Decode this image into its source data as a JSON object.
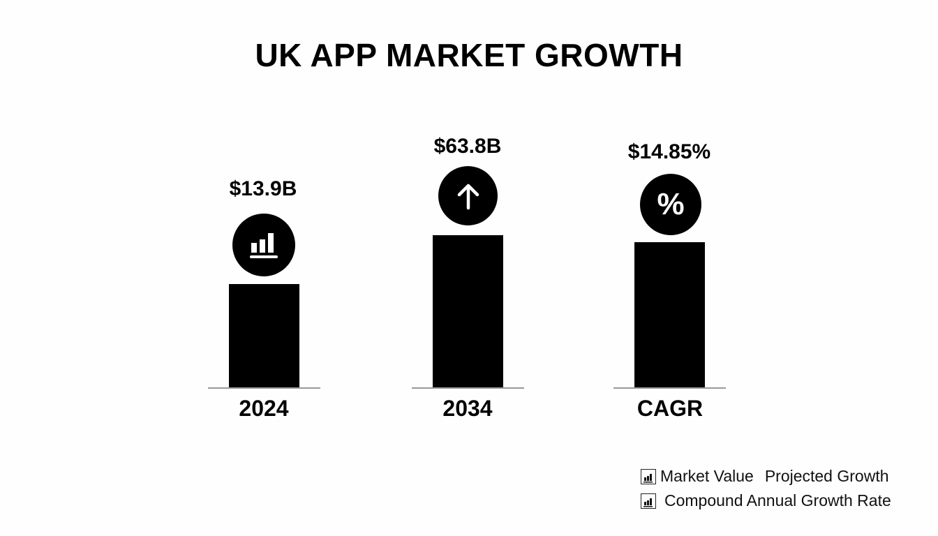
{
  "chart_data": {
    "type": "bar",
    "title": "UK APP MARKET GROWTH",
    "categories": [
      "2024",
      "2034",
      "CAGR"
    ],
    "value_labels": [
      "$13.9B",
      "$63.8B",
      "$14.85%"
    ],
    "values": [
      13.9,
      63.8,
      14.85
    ],
    "icons": [
      "bar-chart-icon",
      "arrow-up-icon",
      "percent-icon"
    ],
    "bar_color": "#000000",
    "legend": {
      "placement": "bottom-right",
      "entries": [
        "Market Value",
        "Projected Growth",
        "Compound Annual Growth Rate"
      ]
    }
  }
}
